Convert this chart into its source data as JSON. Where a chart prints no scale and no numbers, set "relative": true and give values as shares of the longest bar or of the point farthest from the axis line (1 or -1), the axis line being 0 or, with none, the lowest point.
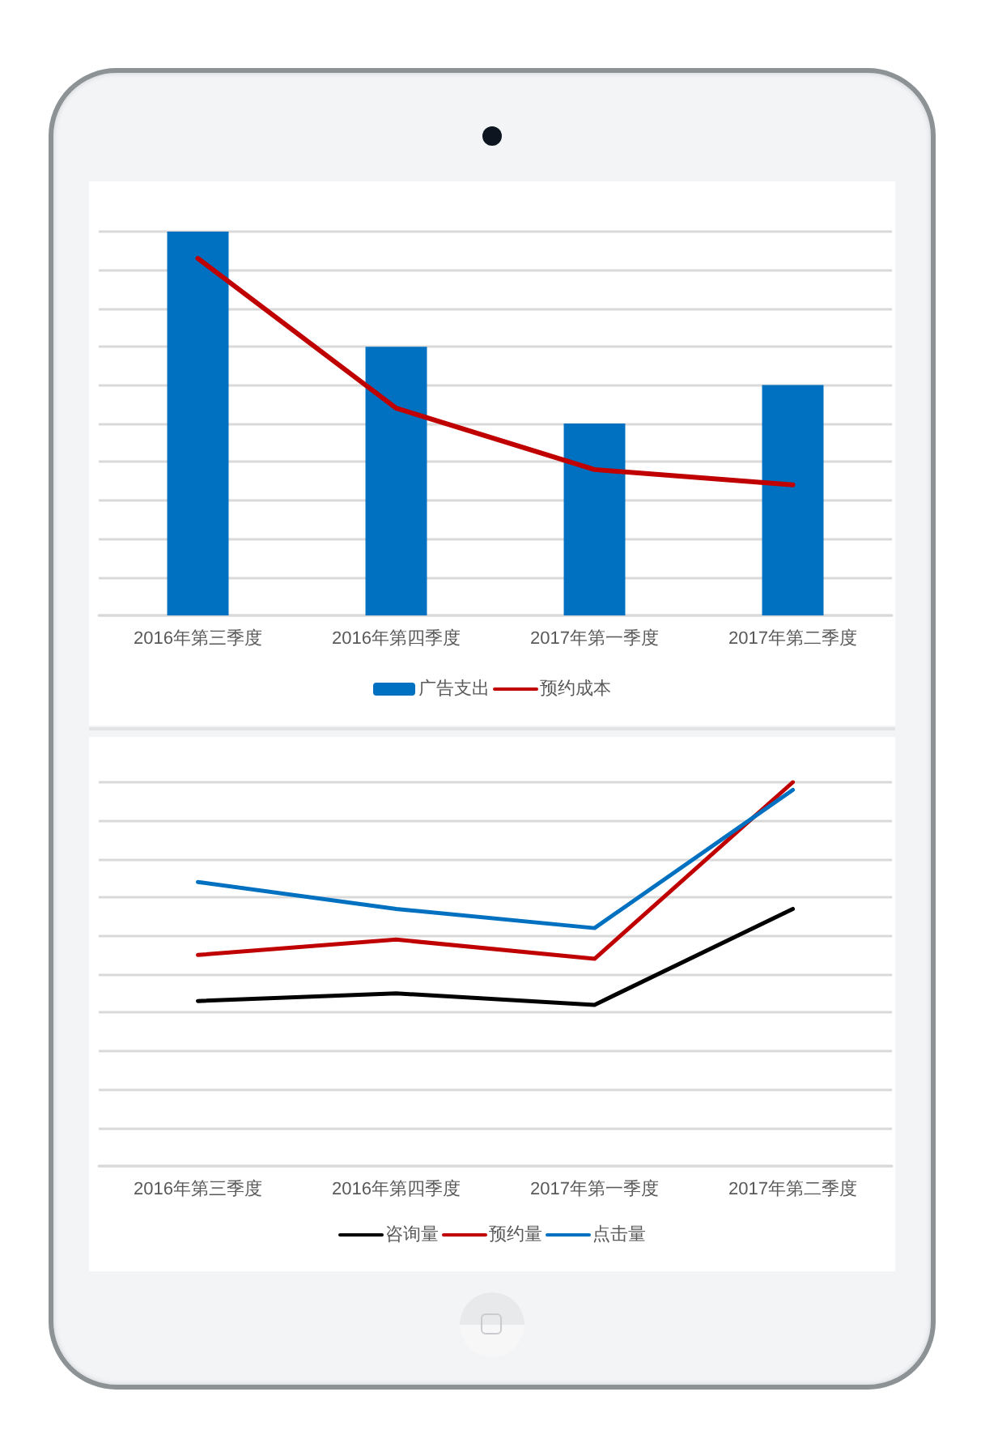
{
  "chart_data": [
    {
      "type": "bar",
      "relative": true,
      "grid": "y",
      "legend": "bottom",
      "marker": "none",
      "categories": [
        "2016年第三季度",
        "2016年第四季度",
        "2017年第一季度",
        "2017年第二季度"
      ],
      "series": [
        {
          "name": "广告支出",
          "color": "#0070c0",
          "values": [
            1,
            0.7,
            0.5,
            0.6
          ]
        },
        {
          "name": "预约成本",
          "type": "line",
          "color": "#c00000",
          "values": [
            0.93,
            0.54,
            0.38,
            0.34
          ]
        }
      ]
    },
    {
      "type": "line",
      "relative": true,
      "grid": "y",
      "legend": "bottom",
      "marker": "none",
      "categories": [
        "2016年第三季度",
        "2016年第四季度",
        "2017年第一季度",
        "2017年第二季度"
      ],
      "series": [
        {
          "name": "咨询量",
          "color": "#000000",
          "values": [
            0.43,
            0.45,
            0.42,
            0.67
          ]
        },
        {
          "name": "预约量",
          "color": "#c00000",
          "values": [
            0.55,
            0.59,
            0.54,
            1
          ]
        },
        {
          "name": "点击量",
          "color": "#0070c0",
          "values": [
            0.74,
            0.67,
            0.62,
            0.98
          ]
        }
      ]
    }
  ]
}
